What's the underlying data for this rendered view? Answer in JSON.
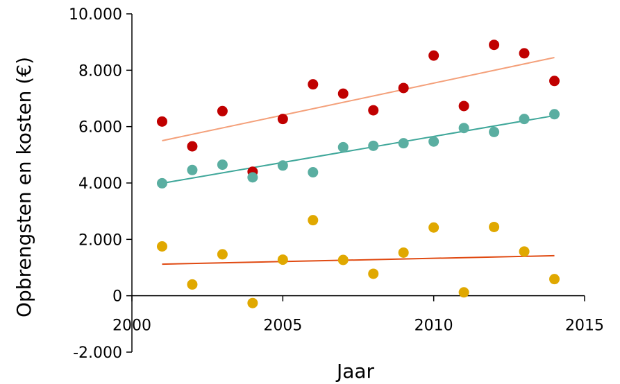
{
  "chart_data": {
    "type": "scatter",
    "title": "",
    "xlabel": "Jaar",
    "ylabel": "Opbrengsten en kosten (€)",
    "xlim": [
      2000,
      2015
    ],
    "ylim": [
      -2000,
      10000
    ],
    "x_ticks": [
      2000,
      2005,
      2010,
      2015
    ],
    "x_tick_labels": [
      "2000",
      "2005",
      "2010",
      "2015"
    ],
    "y_ticks": [
      -2000,
      0,
      2000,
      4000,
      6000,
      8000,
      10000
    ],
    "y_tick_labels": [
      "-2.000",
      "0",
      "2.000",
      "4.000",
      "6.000",
      "8.000",
      "10.000"
    ],
    "grid": false,
    "legend": "none",
    "series": [
      {
        "color": "#c00000",
        "trend_color": "#f4a07a",
        "x": [
          2001,
          2002,
          2003,
          2004,
          2005,
          2006,
          2007,
          2008,
          2009,
          2010,
          2011,
          2012,
          2013,
          2014
        ],
        "values": [
          6180,
          5300,
          6550,
          4400,
          6270,
          7500,
          7170,
          6580,
          7370,
          8520,
          6730,
          8900,
          8600,
          7620
        ],
        "trendline": [
          [
            2001,
            5500
          ],
          [
            2014,
            8450
          ]
        ]
      },
      {
        "color": "#5aaea1",
        "trend_color": "#3fa79a",
        "x": [
          2001,
          2002,
          2003,
          2004,
          2005,
          2006,
          2007,
          2008,
          2009,
          2010,
          2011,
          2012,
          2013,
          2014
        ],
        "values": [
          3990,
          4460,
          4650,
          4200,
          4620,
          4380,
          5270,
          5320,
          5410,
          5470,
          5950,
          5810,
          6270,
          6440
        ],
        "trendline": [
          [
            2001,
            3990
          ],
          [
            2014,
            6390
          ]
        ]
      },
      {
        "color": "#e0a800",
        "trend_color": "#e04a12",
        "x": [
          2001,
          2002,
          2003,
          2004,
          2005,
          2006,
          2007,
          2008,
          2009,
          2010,
          2011,
          2012,
          2013,
          2014
        ],
        "values": [
          1750,
          400,
          1470,
          -260,
          1280,
          2680,
          1270,
          780,
          1530,
          2420,
          120,
          2440,
          1570,
          590
        ],
        "trendline": [
          [
            2001,
            1120
          ],
          [
            2014,
            1420
          ]
        ]
      }
    ]
  }
}
